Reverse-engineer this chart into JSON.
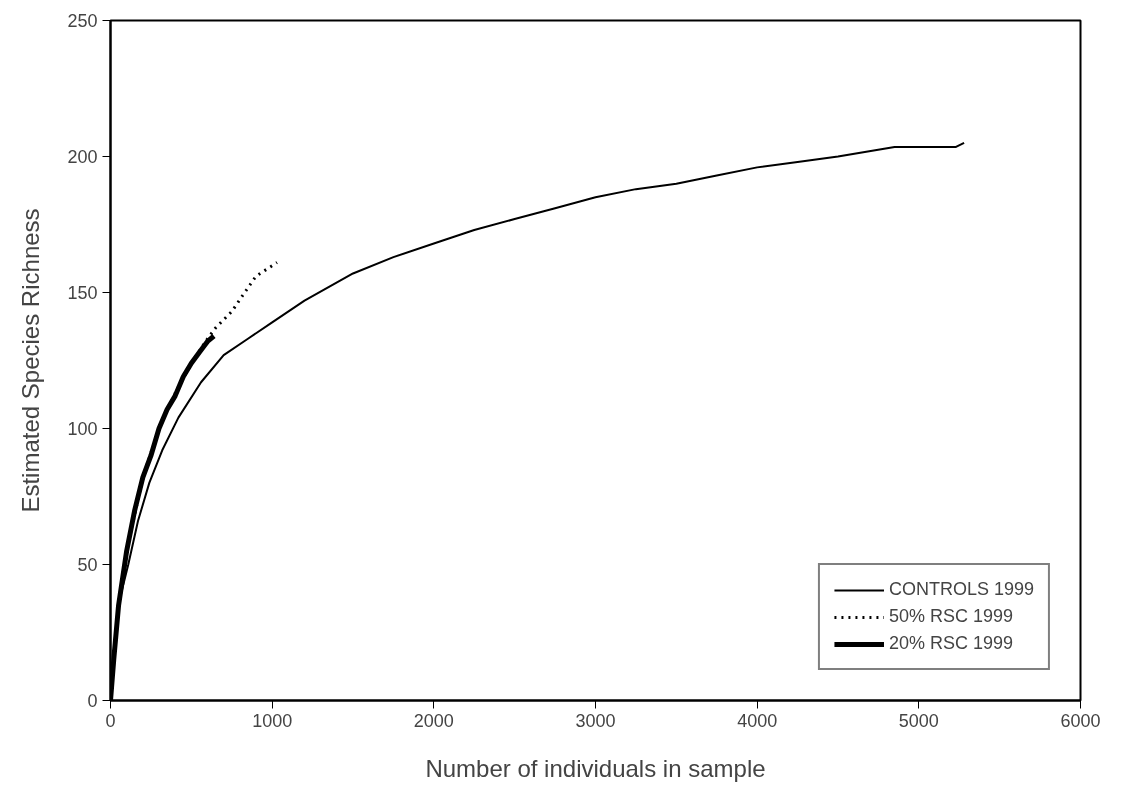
{
  "chart_data": {
    "type": "line",
    "xlabel": "Number of individuals in sample",
    "ylabel": "Estimated Species Richness",
    "xlim": [
      0,
      6000
    ],
    "ylim": [
      0,
      250
    ],
    "xticks": [
      0,
      1000,
      2000,
      3000,
      4000,
      5000,
      6000
    ],
    "yticks": [
      0,
      50,
      100,
      150,
      200,
      250
    ],
    "grid": false,
    "legend": "bottom right",
    "marker": "none",
    "series": [
      {
        "name": "CONTROLS 1999",
        "color": "#000000",
        "line_style": "solid",
        "x": [
          0,
          10,
          30,
          60,
          110,
          170,
          240,
          320,
          420,
          560,
          700,
          850,
          1000,
          1200,
          1500,
          1750,
          2000,
          2250,
          2500,
          2750,
          3000,
          3250,
          3500,
          3750,
          4000,
          4250,
          4500,
          4850,
          5230,
          5280
        ],
        "values": [
          0,
          10,
          25,
          38,
          50,
          66,
          80,
          92,
          104,
          117,
          127,
          133,
          139,
          147,
          157,
          163,
          168,
          173,
          177,
          181,
          185,
          188,
          190,
          193,
          196,
          198,
          200,
          203.5,
          203.5,
          205
        ]
      },
      {
        "name": "50% RSC 1999",
        "color": "#000000",
        "line_style": "dotted",
        "x": [
          0,
          10,
          50,
          100,
          200,
          300,
          400,
          500,
          600,
          650,
          750,
          830,
          900,
          1030
        ],
        "values": [
          0,
          10,
          35,
          55,
          82,
          100,
          113,
          124,
          133,
          137,
          143,
          150,
          156,
          161
        ]
      },
      {
        "name": "20% RSC 1999",
        "color": "#000000",
        "line_style": "solid",
        "x": [
          0,
          20,
          50,
          100,
          150,
          200,
          250,
          300,
          350,
          400,
          450,
          500,
          550,
          600,
          640
        ],
        "values": [
          0,
          15,
          35,
          55,
          70,
          82,
          90,
          100,
          107,
          112,
          119,
          124,
          128,
          132,
          134
        ]
      }
    ]
  }
}
